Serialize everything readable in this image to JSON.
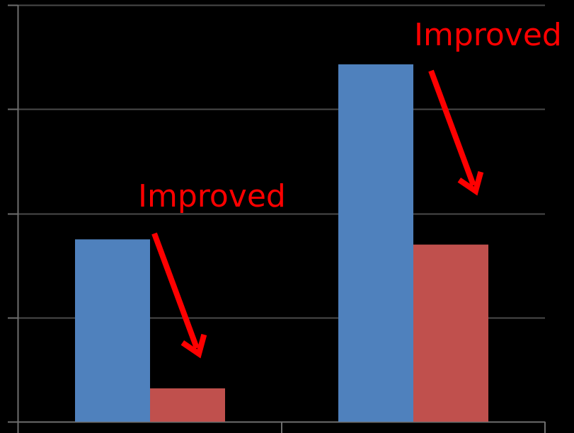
{
  "chart_data": {
    "type": "bar",
    "categories": [
      "",
      ""
    ],
    "series": [
      {
        "values": [
          1.75,
          3.43
        ]
      },
      {
        "values": [
          0.32,
          1.7
        ]
      }
    ],
    "ylim": [
      0,
      4
    ],
    "grid": true,
    "annotations": [
      {
        "text": "Improved",
        "category_index": 0
      },
      {
        "text": "Improved",
        "category_index": 1
      }
    ]
  },
  "colors": {
    "background": "#000000",
    "series": [
      "#4F81BD",
      "#C0504D"
    ],
    "gridline": "#4a4a4a",
    "axis": "#6e6e6e",
    "annotation": "#FF0000"
  }
}
